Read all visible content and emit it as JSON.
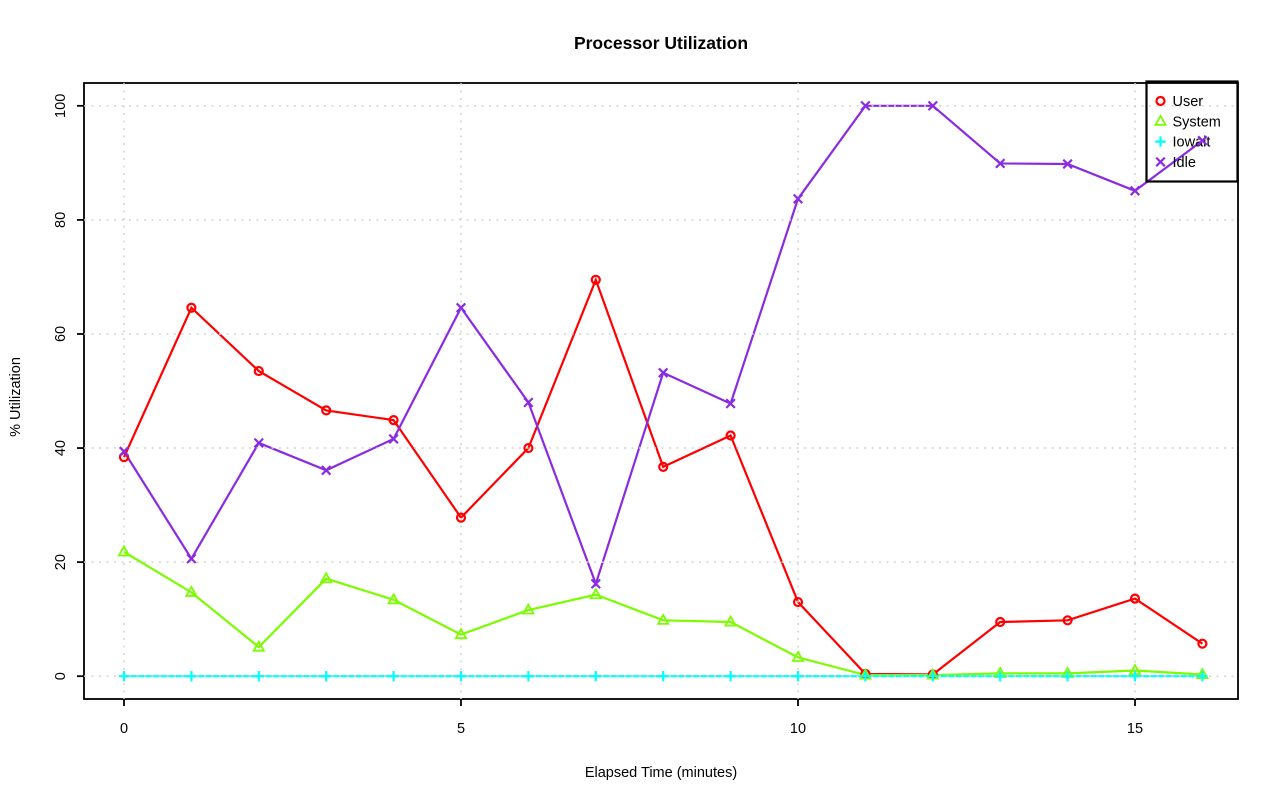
{
  "chart_data": {
    "type": "line",
    "title": "Processor Utilization",
    "xlabel": "Elapsed Time (minutes)",
    "ylabel": "% Utilization",
    "x": [
      0,
      1,
      2,
      3,
      4,
      5,
      6,
      7,
      8,
      9,
      10,
      11,
      12,
      13,
      14,
      15,
      16
    ],
    "series": [
      {
        "name": "User",
        "color": "#ff0000",
        "marker": "circle",
        "values": [
          38.4,
          64.6,
          53.5,
          46.6,
          44.9,
          27.8,
          40.0,
          69.5,
          36.7,
          42.2,
          13.0,
          0.4,
          0.3,
          9.5,
          9.8,
          13.6,
          5.7
        ]
      },
      {
        "name": "System",
        "color": "#7cfc00",
        "marker": "triangle",
        "values": [
          21.8,
          14.7,
          5.1,
          17.1,
          13.4,
          7.3,
          11.6,
          14.3,
          9.8,
          9.5,
          3.3,
          0.2,
          0.2,
          0.5,
          0.5,
          1.0,
          0.3
        ]
      },
      {
        "name": "Iowait",
        "color": "#00ffff",
        "marker": "plus",
        "values": [
          0,
          0,
          0,
          0,
          0,
          0,
          0,
          0,
          0,
          0,
          0,
          0,
          0,
          0,
          0,
          0,
          0
        ]
      },
      {
        "name": "Idle",
        "color": "#8a2be2",
        "marker": "x",
        "values": [
          39.4,
          20.6,
          40.9,
          36.1,
          41.6,
          64.6,
          48.0,
          16.2,
          53.2,
          47.8,
          83.7,
          100.0,
          100.0,
          89.9,
          89.8,
          85.1,
          93.9
        ]
      }
    ],
    "xticks": [
      0,
      5,
      10,
      15
    ],
    "yticks": [
      0,
      20,
      40,
      60,
      80,
      100
    ],
    "xlim": [
      -0.6,
      16.6
    ],
    "ylim": [
      0,
      100
    ],
    "grid": {
      "on": true,
      "style": "dotted",
      "color": "#d3d3d3",
      "x_at": [
        0,
        5,
        10,
        15
      ],
      "y_at": [
        0,
        20,
        40,
        60,
        80,
        100
      ]
    },
    "legend": {
      "position": "topright",
      "items": [
        "User",
        "System",
        "Iowait",
        "Idle"
      ]
    },
    "frame_color": "#000000",
    "background": "#ffffff"
  }
}
